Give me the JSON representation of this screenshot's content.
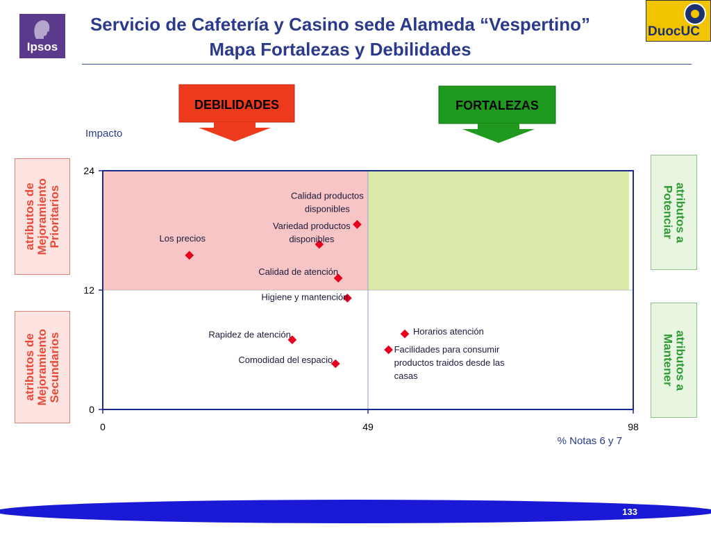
{
  "header": {
    "title_line1": "Servicio de Cafetería y Casino sede Alameda “Vespertino”",
    "title_line2": "Mapa Fortalezas y Debilidades",
    "logo_left_text": "Ipsos",
    "logo_right_text": "DuocUC"
  },
  "banners": {
    "debilidades": "DEBILIDADES",
    "fortalezas": "FORTALEZAS"
  },
  "side_labels": {
    "top_left": "atributos de\nMejoramiento\nPrioritarios",
    "bottom_left": "atributos de\nMejoramiento\nSecundarios",
    "top_right": "atributos a\nPotenciar",
    "bottom_right": "atributos a\nMantener"
  },
  "colors": {
    "title": "#2b3a8a",
    "debilidades_banner": "#ee3a1c",
    "fortalezas_banner": "#1f9a1f",
    "quadrant_weakness": "#f7c5c5",
    "quadrant_strength": "#dbeaa8",
    "point": "#e8001c",
    "footer": "#1a1ad6"
  },
  "chart_data": {
    "type": "scatter",
    "title": "",
    "xlabel": "% Notas 6 y 7",
    "ylabel": "Impacto",
    "xlim": [
      0,
      98
    ],
    "ylim": [
      0,
      24
    ],
    "x_ticks": [
      0,
      49,
      98
    ],
    "y_ticks": [
      0,
      12,
      24
    ],
    "x_threshold": 49,
    "y_threshold": 12,
    "grid": false,
    "points": [
      {
        "label": "Los precios",
        "x": 16,
        "y": 15.5
      },
      {
        "label": "Calidad productos disponibles",
        "x": 47,
        "y": 18.6
      },
      {
        "label": "Variedad productos disponibles",
        "x": 40,
        "y": 16.6
      },
      {
        "label": "Calidad de atención",
        "x": 43.5,
        "y": 13.2
      },
      {
        "label": "Higiene y mantención",
        "x": 45.2,
        "y": 11.2
      },
      {
        "label": "Rapidez de atención",
        "x": 35,
        "y": 7
      },
      {
        "label": "Comodidad del espacio",
        "x": 43,
        "y": 4.6
      },
      {
        "label": "Horarios atención",
        "x": 55.8,
        "y": 7.6
      },
      {
        "label": "Facilidades para consumir productos traidos desde las casas",
        "x": 52.8,
        "y": 6
      }
    ]
  },
  "footer": {
    "page_number": "133"
  }
}
